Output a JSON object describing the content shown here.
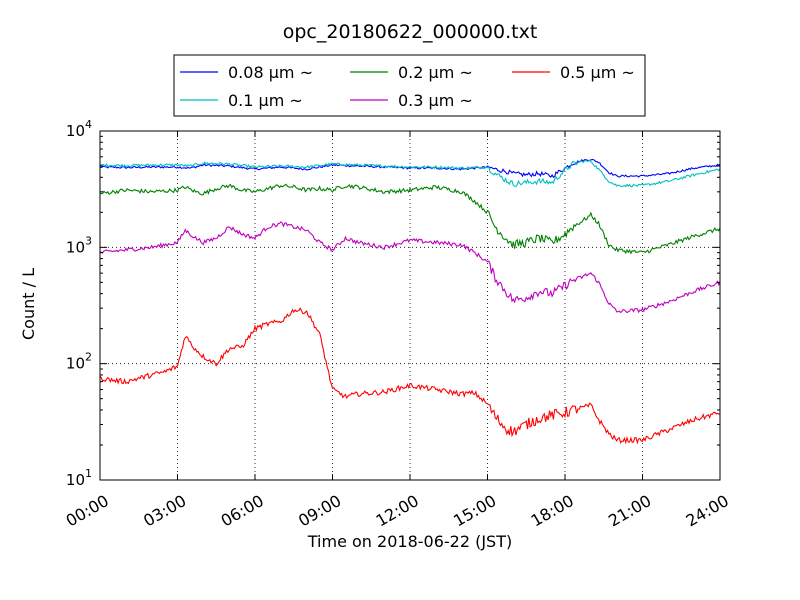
{
  "chart_data": {
    "type": "line",
    "title": "opc_20180622_000000.txt",
    "xlabel": "Time on 2018-06-22 (JST)",
    "ylabel": "Count / L",
    "yscale": "log",
    "ylim": [
      10,
      10000
    ],
    "xlim_hours": [
      0,
      24
    ],
    "x_tick_labels": [
      "00:00",
      "03:00",
      "06:00",
      "09:00",
      "12:00",
      "15:00",
      "18:00",
      "21:00",
      "24:00"
    ],
    "y_tick_labels": [
      {
        "base": "10",
        "exp": "1",
        "value": 10
      },
      {
        "base": "10",
        "exp": "2",
        "value": 100
      },
      {
        "base": "10",
        "exp": "3",
        "value": 1000
      },
      {
        "base": "10",
        "exp": "4",
        "value": 10000
      }
    ],
    "grid": true,
    "legend_position": "top-center",
    "series": [
      {
        "name": "0.08 μm ~",
        "color": "#0000ff",
        "x": [
          0,
          1,
          2,
          3,
          3.5,
          4,
          5,
          6,
          7,
          8,
          9,
          10,
          11,
          12,
          13,
          14,
          15,
          15.3,
          15.7,
          16,
          16.5,
          17,
          17.5,
          18,
          18.3,
          18.7,
          19,
          19.3,
          19.7,
          20,
          21,
          22,
          23,
          24
        ],
        "y": [
          4900,
          4850,
          4900,
          4900,
          4800,
          5100,
          5000,
          4700,
          4900,
          4700,
          5100,
          5000,
          4900,
          4800,
          4800,
          4700,
          4900,
          4700,
          4500,
          4300,
          4200,
          4300,
          4100,
          4800,
          5300,
          5600,
          5700,
          5400,
          4400,
          4100,
          4100,
          4300,
          4800,
          5100
        ]
      },
      {
        "name": "0.1 μm ~",
        "color": "#00bfbf",
        "x": [
          0,
          1,
          2,
          3,
          3.5,
          4,
          5,
          6,
          7,
          8,
          9,
          10,
          11,
          12,
          13,
          14,
          15,
          15.3,
          15.7,
          16,
          16.5,
          17,
          17.5,
          18,
          18.3,
          18.7,
          19,
          19.3,
          19.7,
          20,
          21,
          22,
          23,
          24
        ],
        "y": [
          5100,
          5050,
          5100,
          5100,
          5000,
          5300,
          5200,
          4900,
          5000,
          4900,
          5200,
          5100,
          5000,
          4900,
          4900,
          4800,
          4900,
          4300,
          3800,
          3500,
          3600,
          3700,
          3600,
          4600,
          5200,
          5500,
          5500,
          4700,
          3700,
          3400,
          3400,
          3700,
          4200,
          4700
        ]
      },
      {
        "name": "0.2 μm ~",
        "color": "#008000",
        "x": [
          0,
          1,
          2,
          3,
          3.3,
          3.7,
          4,
          4.5,
          5,
          5.5,
          6,
          6.5,
          7,
          7.5,
          8,
          8.5,
          9,
          9.5,
          10,
          11,
          12,
          13,
          14,
          14.5,
          15,
          15.3,
          15.7,
          16,
          16.5,
          17,
          17.5,
          18,
          18.3,
          18.7,
          19,
          19.3,
          19.7,
          20,
          21,
          22,
          23,
          24
        ],
        "y": [
          2900,
          3100,
          3000,
          3100,
          3300,
          3000,
          2900,
          3200,
          3400,
          3100,
          3000,
          3200,
          3400,
          3300,
          3100,
          3200,
          3100,
          3400,
          3300,
          3000,
          3100,
          3300,
          3000,
          2500,
          2000,
          1500,
          1200,
          1050,
          1100,
          1200,
          1100,
          1300,
          1500,
          1700,
          1900,
          1600,
          1050,
          950,
          900,
          1050,
          1250,
          1450
        ]
      },
      {
        "name": "0.3 μm ~",
        "color": "#bf00bf",
        "x": [
          0,
          1,
          2,
          3,
          3.3,
          3.7,
          4,
          4.5,
          5,
          5.5,
          6,
          6.5,
          7,
          7.5,
          8,
          8.5,
          9,
          9.5,
          10,
          11,
          12,
          13,
          14,
          14.5,
          15,
          15.3,
          15.7,
          16,
          16.5,
          17,
          17.5,
          18,
          18.3,
          18.7,
          19,
          19.3,
          19.7,
          20,
          21,
          22,
          23,
          24
        ],
        "y": [
          900,
          950,
          1000,
          1100,
          1400,
          1200,
          1100,
          1200,
          1500,
          1300,
          1200,
          1500,
          1600,
          1500,
          1400,
          1100,
          950,
          1200,
          1100,
          1000,
          1150,
          1100,
          1050,
          900,
          750,
          550,
          420,
          350,
          370,
          420,
          400,
          470,
          520,
          560,
          600,
          500,
          330,
          280,
          290,
          340,
          420,
          500
        ]
      },
      {
        "name": "0.5 μm ~",
        "color": "#ff0000",
        "x": [
          0,
          0.5,
          1,
          1.5,
          2,
          2.5,
          3,
          3.3,
          3.6,
          4,
          4.5,
          5,
          5.5,
          6,
          6.5,
          7,
          7.5,
          8,
          8.5,
          9,
          9.5,
          10,
          11,
          12,
          13,
          14,
          14.5,
          15,
          15.3,
          15.7,
          16,
          16.5,
          17,
          17.5,
          18,
          18.3,
          18.7,
          19,
          19.3,
          19.7,
          20,
          21,
          22,
          23,
          24
        ],
        "y": [
          75,
          72,
          70,
          75,
          80,
          85,
          95,
          175,
          140,
          115,
          100,
          135,
          140,
          200,
          220,
          230,
          290,
          280,
          180,
          60,
          52,
          55,
          57,
          65,
          60,
          55,
          56,
          45,
          35,
          28,
          26,
          30,
          34,
          36,
          38,
          40,
          42,
          44,
          33,
          25,
          22,
          22,
          27,
          33,
          38
        ]
      }
    ]
  }
}
